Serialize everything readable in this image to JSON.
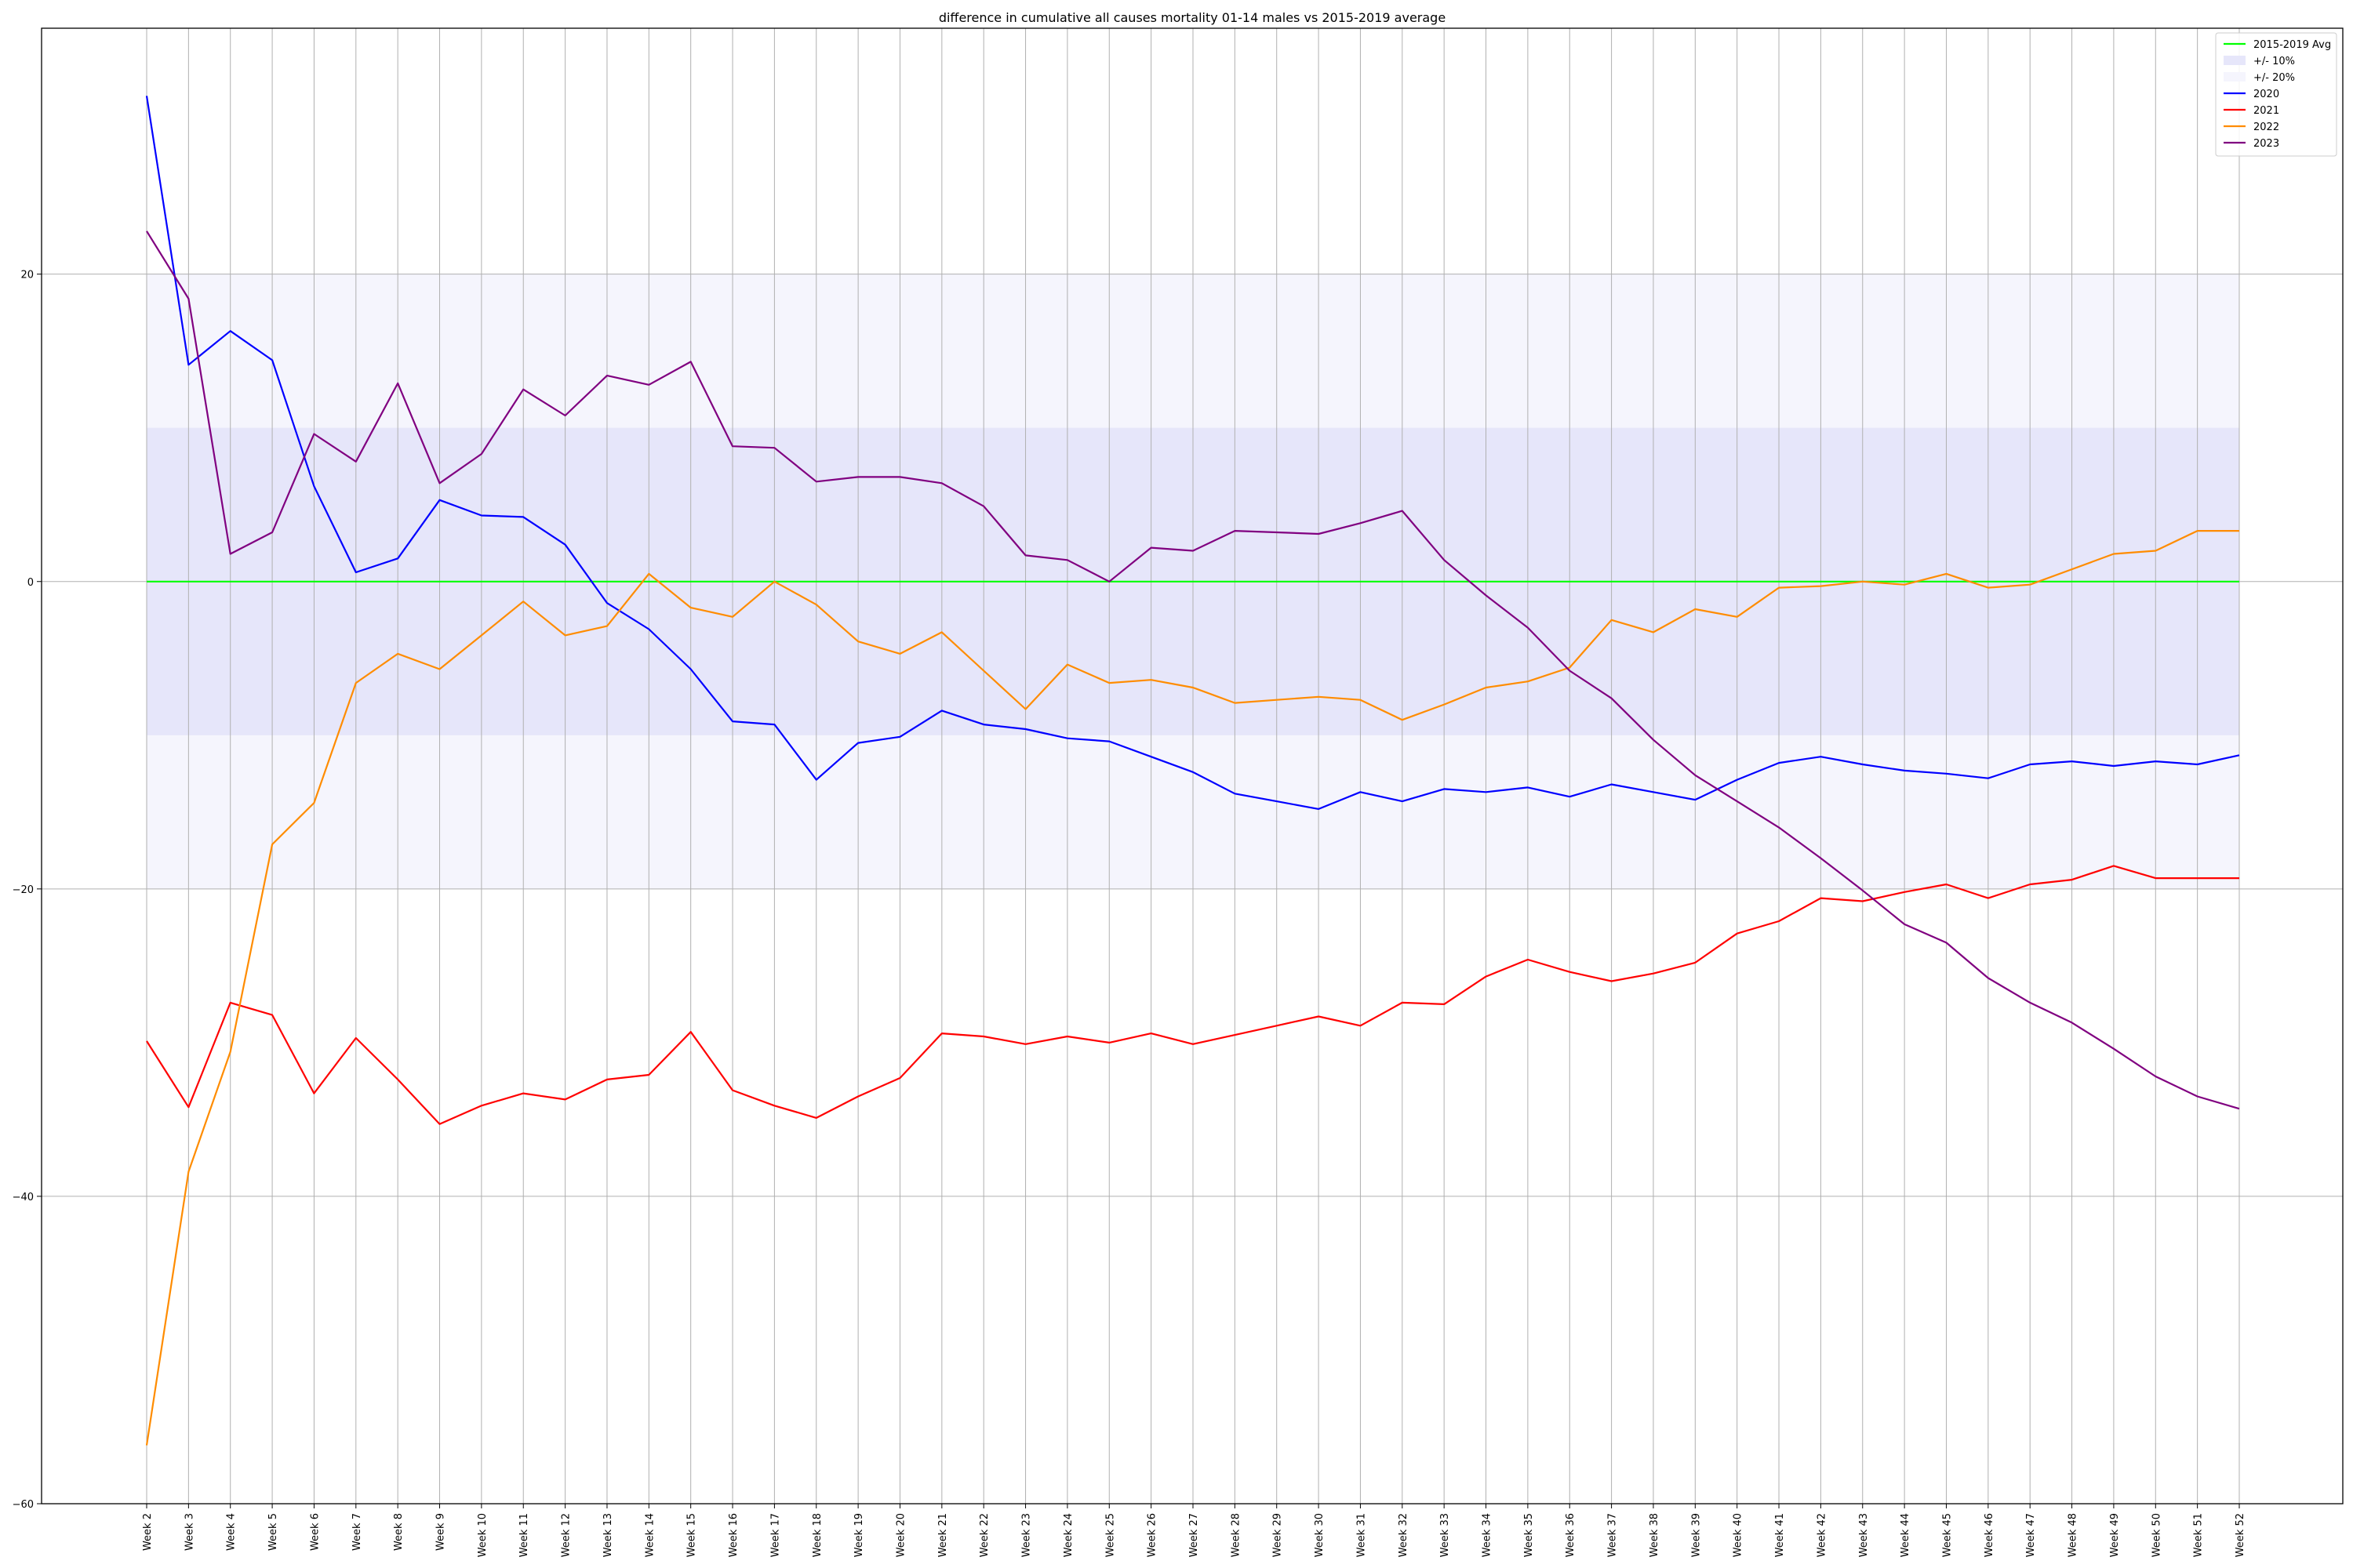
{
  "chart_data": {
    "type": "line",
    "title": "difference in cumulative all causes mortality 01-14 males vs 2015-2019 average",
    "xlabel": "",
    "ylabel": "",
    "ylim": [
      -60,
      36
    ],
    "yticks": [
      -60,
      -40,
      -20,
      0,
      20
    ],
    "grid": true,
    "legend_position": "top-right",
    "categories": [
      "Week 2",
      "Week 3",
      "Week 4",
      "Week 5",
      "Week 6",
      "Week 7",
      "Week 8",
      "Week 9",
      "Week 10",
      "Week 11",
      "Week 12",
      "Week 13",
      "Week 14",
      "Week 15",
      "Week 16",
      "Week 17",
      "Week 18",
      "Week 19",
      "Week 20",
      "Week 21",
      "Week 22",
      "Week 23",
      "Week 24",
      "Week 25",
      "Week 26",
      "Week 27",
      "Week 28",
      "Week 29",
      "Week 30",
      "Week 31",
      "Week 32",
      "Week 33",
      "Week 34",
      "Week 35",
      "Week 36",
      "Week 37",
      "Week 38",
      "Week 39",
      "Week 40",
      "Week 41",
      "Week 42",
      "Week 43",
      "Week 44",
      "Week 45",
      "Week 46",
      "Week 47",
      "Week 48",
      "Week 49",
      "Week 50",
      "Week 51",
      "Week 52"
    ],
    "bands": [
      {
        "name": "+/- 10%",
        "low": -10,
        "high": 10,
        "color": "#e6e6fa"
      },
      {
        "name": "+/- 20%",
        "low": -20,
        "high": 20,
        "color": "#f5f5fd"
      }
    ],
    "series": [
      {
        "name": "2015-2019 Avg",
        "color": "#00ff00",
        "values": [
          0,
          0,
          0,
          0,
          0,
          0,
          0,
          0,
          0,
          0,
          0,
          0,
          0,
          0,
          0,
          0,
          0,
          0,
          0,
          0,
          0,
          0,
          0,
          0,
          0,
          0,
          0,
          0,
          0,
          0,
          0,
          0,
          0,
          0,
          0,
          0,
          0,
          0,
          0,
          0,
          0,
          0,
          0,
          0,
          0,
          0,
          0,
          0,
          0,
          0,
          0
        ]
      },
      {
        "name": "2020",
        "color": "#0000ff",
        "values": [
          31.6,
          14.1,
          16.3,
          14.4,
          6.2,
          0.6,
          1.5,
          5.3,
          4.3,
          4.2,
          2.4,
          -1.4,
          -3.1,
          -5.7,
          -9.1,
          -9.3,
          -12.9,
          -10.5,
          -10.1,
          -8.4,
          -9.3,
          -9.6,
          -10.2,
          -10.4,
          -11.4,
          -12.4,
          -13.8,
          -14.3,
          -14.8,
          -13.7,
          -14.3,
          -13.5,
          -13.7,
          -13.4,
          -14.0,
          -13.2,
          -13.7,
          -14.2,
          -12.9,
          -11.8,
          -11.4,
          -11.9,
          -12.3,
          -12.5,
          -12.8,
          -11.9,
          -11.7,
          -12.0,
          -11.7,
          -11.9,
          -11.3
        ]
      },
      {
        "name": "2021",
        "color": "#ff0000",
        "values": [
          -29.9,
          -34.2,
          -27.4,
          -28.2,
          -33.3,
          -29.7,
          -32.4,
          -35.3,
          -34.1,
          -33.3,
          -33.7,
          -32.4,
          -32.1,
          -29.3,
          -33.1,
          -34.1,
          -34.9,
          -33.5,
          -32.3,
          -29.4,
          -29.6,
          -30.1,
          -29.6,
          -30.0,
          -29.4,
          -30.1,
          -29.5,
          -28.9,
          -28.3,
          -28.9,
          -27.4,
          -27.5,
          -25.7,
          -24.6,
          -25.4,
          -26.0,
          -25.5,
          -24.8,
          -22.9,
          -22.1,
          -20.6,
          -20.8,
          -20.2,
          -19.7,
          -20.6,
          -19.7,
          -19.4,
          -18.5,
          -19.3,
          -19.3,
          -19.3
        ]
      },
      {
        "name": "2022",
        "color": "#ff8c00",
        "values": [
          -56.2,
          -38.4,
          -30.6,
          -17.1,
          -14.4,
          -6.6,
          -4.7,
          -5.7,
          -3.5,
          -1.3,
          -3.5,
          -2.9,
          0.5,
          -1.7,
          -2.3,
          0.0,
          -1.5,
          -3.9,
          -4.7,
          -3.3,
          -5.8,
          -8.3,
          -5.4,
          -6.6,
          -6.4,
          -6.9,
          -7.9,
          -7.7,
          -7.5,
          -7.7,
          -9.0,
          -8.0,
          -6.9,
          -6.5,
          -5.6,
          -2.5,
          -3.3,
          -1.8,
          -2.3,
          -0.4,
          -0.3,
          0.0,
          -0.2,
          0.5,
          -0.4,
          -0.2,
          0.8,
          1.8,
          2.0,
          3.3,
          3.3
        ]
      },
      {
        "name": "2023",
        "color": "#800080",
        "values": [
          22.8,
          18.4,
          1.8,
          3.2,
          9.6,
          7.8,
          12.9,
          6.4,
          8.3,
          12.5,
          10.8,
          13.4,
          12.8,
          14.3,
          8.8,
          8.7,
          6.5,
          6.8,
          6.8,
          6.4,
          4.9,
          1.7,
          1.4,
          0.0,
          2.2,
          2.0,
          3.3,
          3.2,
          3.1,
          3.8,
          4.6,
          1.4,
          -0.9,
          -3.0,
          -5.8,
          -7.6,
          -10.3,
          -12.6,
          -14.3,
          -16.0,
          -18.0,
          -20.1,
          -22.3,
          -23.5,
          -25.8,
          -27.4,
          -28.7,
          -30.4,
          -32.2,
          -33.5,
          -34.3
        ]
      }
    ]
  }
}
